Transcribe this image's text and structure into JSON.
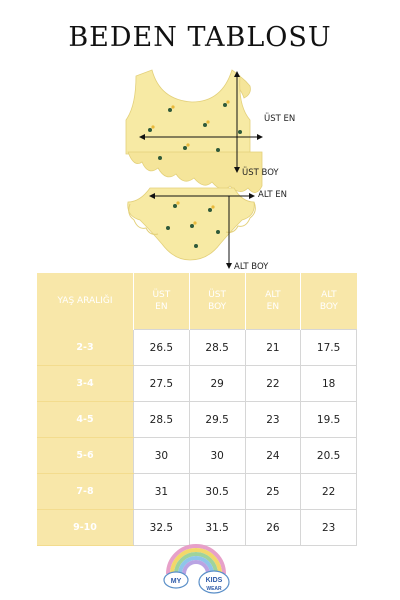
{
  "title": "BEDEN TABLOSU",
  "measurement_labels": {
    "top_width": "ÜST EN",
    "top_length": "ÜST BOY",
    "bottom_width": "ALT EN",
    "bottom_length": "ALT BOY"
  },
  "table": {
    "headers": [
      {
        "line1": "YAŞ ARALIĞI",
        "line2": ""
      },
      {
        "line1": "ÜST",
        "line2": "EN"
      },
      {
        "line1": "ÜST",
        "line2": "BOY"
      },
      {
        "line1": "ALT",
        "line2": "EN"
      },
      {
        "line1": "ALT",
        "line2": "BOY"
      }
    ],
    "rows": [
      {
        "age": "2-3",
        "values": [
          "26.5",
          "28.5",
          "21",
          "17.5"
        ]
      },
      {
        "age": "3-4",
        "values": [
          "27.5",
          "29",
          "22",
          "18"
        ]
      },
      {
        "age": "4-5",
        "values": [
          "28.5",
          "29.5",
          "23",
          "19.5"
        ]
      },
      {
        "age": "5-6",
        "values": [
          "30",
          "30",
          "24",
          "20.5"
        ]
      },
      {
        "age": "7-8",
        "values": [
          "31",
          "30.5",
          "25",
          "22"
        ]
      },
      {
        "age": "9-10",
        "values": [
          "32.5",
          "31.5",
          "26",
          "23"
        ]
      }
    ]
  },
  "logo": {
    "word1": "MY",
    "word2": "KIDS",
    "word3": "WEAR"
  },
  "colors": {
    "header_bg": "#f8e7a9",
    "garment": "#f7eaa4"
  }
}
